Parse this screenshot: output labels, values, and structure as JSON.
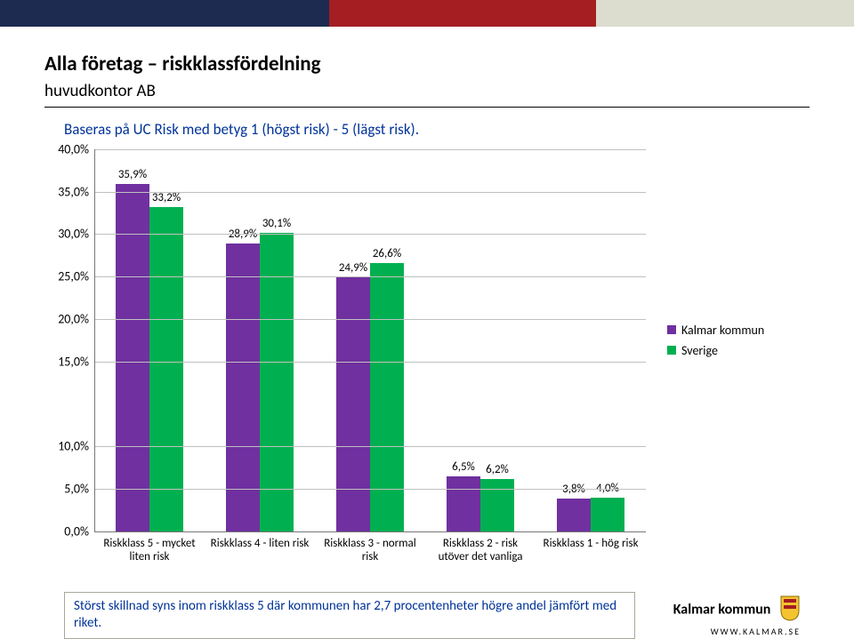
{
  "header": {
    "colors": {
      "navy": "#1d2b50",
      "red": "#a41e22",
      "tan": "#dcdccf"
    }
  },
  "title1": "Alla företag – riskklassfördelning",
  "title2": "huvudkontor AB",
  "desc": "Baseras på UC Risk med betyg 1 (högst risk) - 5 (lägst risk).",
  "chart": {
    "type": "bar",
    "y_max": 40,
    "y_step": 5,
    "y_labels": [
      "40,0%",
      "35,0%",
      "30,0%",
      "25,0%",
      "20,0%",
      "15,0%",
      "10,0%",
      "5,0%",
      "0,0%"
    ],
    "break_after_index": 5,
    "series": [
      {
        "name": "Kalmar kommun",
        "color": "#7030a0"
      },
      {
        "name": "Sverige",
        "color": "#00b050"
      }
    ],
    "categories": [
      {
        "label": "Riskklass 5 - mycket liten risk",
        "values": [
          35.9,
          33.2
        ],
        "value_labels": [
          "35,9%",
          "33,2%"
        ]
      },
      {
        "label": "Riskklass 4 - liten risk",
        "values": [
          28.9,
          30.1
        ],
        "value_labels": [
          "28,9%",
          "30,1%"
        ]
      },
      {
        "label": "Riskklass 3 - normal risk",
        "values": [
          24.9,
          26.6
        ],
        "value_labels": [
          "24,9%",
          "26,6%"
        ]
      },
      {
        "label": "Riskklass 2 - risk utöver det vanliga",
        "values": [
          6.5,
          6.2
        ],
        "value_labels": [
          "6,5%",
          "6,2%"
        ]
      },
      {
        "label": "Riskklass 1 - hög risk",
        "values": [
          3.8,
          4.0
        ],
        "value_labels": [
          "3,8%",
          "4,0%"
        ]
      }
    ],
    "grid_color": "#c0c0c0",
    "axis_color": "#777777",
    "bar_label_fontsize": 13,
    "axis_fontsize": 14
  },
  "note": "Störst skillnad syns inom riskklass 5 där kommunen har 2,7 procentenheter högre andel jämfört med riket.",
  "footer": {
    "brand": "Kalmar kommun",
    "url": "WWW.KALMAR.SE"
  }
}
